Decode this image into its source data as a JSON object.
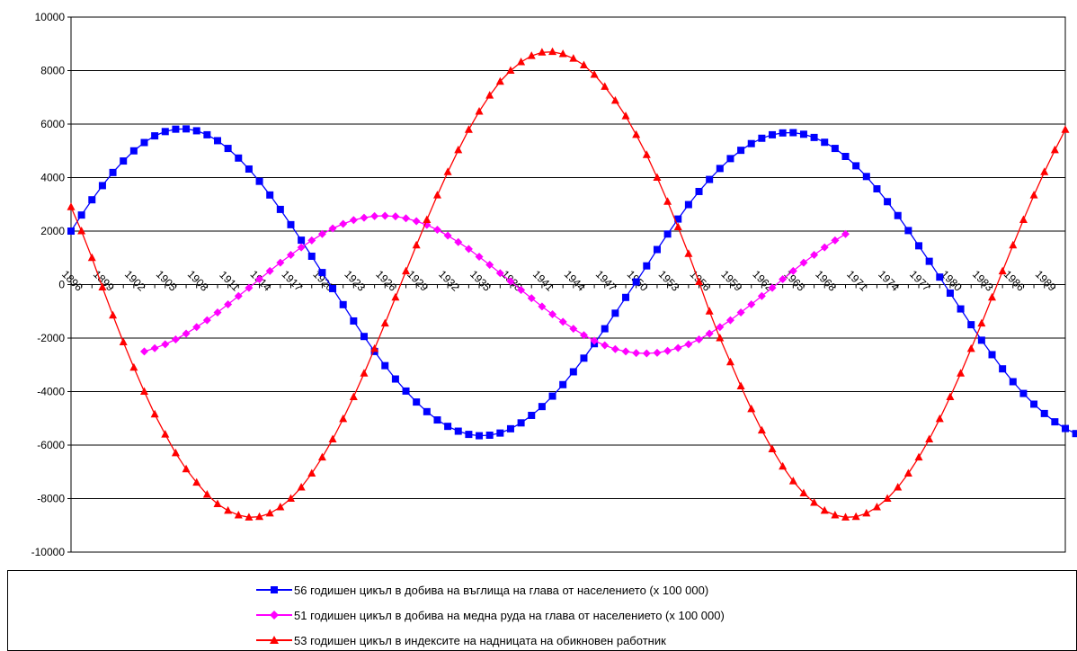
{
  "chart_data": {
    "type": "line",
    "title": "",
    "xlabel": "",
    "ylabel": "",
    "ylim": [
      -10000,
      10000
    ],
    "xlim": [
      1896,
      1991
    ],
    "yticks": [
      10000,
      8000,
      6000,
      4000,
      2000,
      0,
      -2000,
      -4000,
      -6000,
      -8000,
      -10000
    ],
    "ytick_labels": [
      "10000",
      "8000",
      "6000",
      "4000",
      "2000",
      "0",
      "-2000",
      "-4000",
      "-6000",
      "-8000",
      "-10000"
    ],
    "xtick_labels": [
      "1896",
      "1899",
      "1902",
      "1905",
      "1908",
      "1911",
      "1914",
      "1917",
      "1920",
      "1923",
      "1926",
      "1929",
      "1932",
      "1935",
      "1938",
      "1941",
      "1944",
      "1947",
      "1950",
      "1953",
      "1956",
      "1959",
      "1962",
      "1965",
      "1968",
      "1971",
      "1974",
      "1977",
      "1980",
      "1983",
      "1986",
      "1989"
    ],
    "grid": "horizontal",
    "legend_position": "bottom",
    "series": [
      {
        "name": "56 годишен цикъл в добива на въглища на глава от населението (х 100 000)",
        "color": "#0000ff",
        "marker": "square",
        "x_start": 1896,
        "x_step": 1,
        "values": [
          2000,
          2600,
          3170,
          3700,
          4190,
          4620,
          5000,
          5310,
          5560,
          5720,
          5810,
          5820,
          5750,
          5600,
          5380,
          5090,
          4730,
          4320,
          3860,
          3350,
          2810,
          2240,
          1660,
          1060,
          450,
          -150,
          -750,
          -1360,
          -1940,
          -2500,
          -3030,
          -3530,
          -3980,
          -4390,
          -4750,
          -5060,
          -5300,
          -5480,
          -5600,
          -5650,
          -5630,
          -5550,
          -5390,
          -5170,
          -4890,
          -4560,
          -4170,
          -3740,
          -3260,
          -2750,
          -2210,
          -1650,
          -1070,
          -480,
          100,
          700,
          1310,
          1890,
          2450,
          2990,
          3480,
          3930,
          4340,
          4710,
          5020,
          5270,
          5470,
          5600,
          5670,
          5680,
          5620,
          5500,
          5320,
          5090,
          4790,
          4440,
          4040,
          3580,
          3100,
          2580,
          2020,
          1450,
          870,
          280,
          -320,
          -910,
          -1500,
          -2080,
          -2620,
          -3150,
          -3630,
          -4070,
          -4470,
          -4820,
          -5130,
          -5380,
          -5570,
          -5700
        ]
      },
      {
        "name": "51 годишен цикъл в добива на медна руда на глава от населението (х 100 000)",
        "color": "#ff00ff",
        "marker": "diamond",
        "x_start": 1903,
        "x_step": 1,
        "values": [
          -2500,
          -2380,
          -2230,
          -2050,
          -1830,
          -1590,
          -1330,
          -1040,
          -740,
          -430,
          -120,
          200,
          510,
          820,
          1110,
          1390,
          1650,
          1890,
          2100,
          2270,
          2410,
          2500,
          2560,
          2570,
          2550,
          2480,
          2370,
          2230,
          2050,
          1830,
          1590,
          1330,
          1040,
          740,
          430,
          120,
          -200,
          -510,
          -820,
          -1110,
          -1390,
          -1650,
          -1890,
          -2100,
          -2270,
          -2410,
          -2500,
          -2560,
          -2570,
          -2550,
          -2480,
          -2370,
          -2230,
          -2050,
          -1830,
          -1590,
          -1330,
          -1040,
          -740,
          -430,
          -120,
          200,
          510,
          820,
          1110,
          1390,
          1650,
          1890
        ]
      },
      {
        "name": "53 годишен цикъл в индексите на надницата на обикновен работник",
        "color": "#ff0000",
        "marker": "triangle",
        "x_start": 1896,
        "x_step": 1,
        "values": [
          2900,
          2000,
          1000,
          -100,
          -1150,
          -2150,
          -3100,
          -4000,
          -4850,
          -5600,
          -6300,
          -6900,
          -7400,
          -7850,
          -8200,
          -8450,
          -8620,
          -8700,
          -8680,
          -8550,
          -8320,
          -8000,
          -7580,
          -7060,
          -6460,
          -5780,
          -5020,
          -4200,
          -3320,
          -2400,
          -1450,
          -480,
          500,
          1470,
          2420,
          3340,
          4210,
          5030,
          5790,
          6470,
          7070,
          7590,
          8000,
          8320,
          8550,
          8680,
          8700,
          8620,
          8450,
          8200,
          7850,
          7400,
          6880,
          6300,
          5600,
          4850,
          4000,
          3100,
          2150,
          1150,
          100,
          -1000,
          -2000,
          -2900,
          -3800,
          -4650,
          -5450,
          -6150,
          -6800,
          -7350,
          -7800,
          -8150,
          -8450,
          -8620,
          -8700,
          -8680,
          -8550,
          -8320,
          -8000,
          -7580,
          -7060,
          -6460,
          -5780,
          -5020,
          -4200,
          -3320,
          -2400,
          -1450,
          -480,
          500,
          1470,
          2420,
          3340,
          4210,
          5030,
          5790
        ]
      }
    ]
  }
}
